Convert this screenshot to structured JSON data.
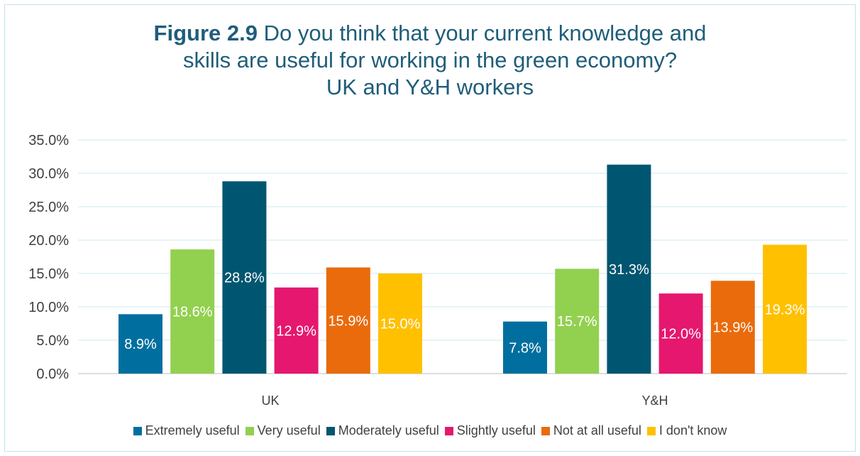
{
  "chart_data": {
    "type": "bar",
    "title": {
      "lead": "Figure 2.9",
      "line1": "Do you think that your current knowledge and",
      "line2": "skills are useful for working in the green economy?",
      "line3": "UK and Y&H workers"
    },
    "categories": [
      "UK",
      "Y&H"
    ],
    "series": [
      {
        "name": "Extremely useful",
        "color": "#006f9f",
        "values": [
          8.9,
          7.8
        ],
        "labels": [
          "8.9%",
          "7.8%"
        ]
      },
      {
        "name": "Very useful",
        "color": "#92d050",
        "values": [
          18.6,
          15.7
        ],
        "labels": [
          "18.6%",
          "15.7%"
        ]
      },
      {
        "name": "Moderately useful",
        "color": "#005670",
        "values": [
          28.8,
          31.3
        ],
        "labels": [
          "28.8%",
          "31.3%"
        ]
      },
      {
        "name": "Slightly useful",
        "color": "#e6176e",
        "values": [
          12.9,
          12.0
        ],
        "labels": [
          "12.9%",
          "12.0%"
        ]
      },
      {
        "name": "Not at all useful",
        "color": "#e96b0c",
        "values": [
          15.9,
          13.9
        ],
        "labels": [
          "15.9%",
          "13.9%"
        ]
      },
      {
        "name": "I don't know",
        "color": "#ffc000",
        "values": [
          15.0,
          19.3
        ],
        "labels": [
          "15.0%",
          "19.3%"
        ]
      }
    ],
    "y_ticks": [
      "0.0%",
      "5.0%",
      "10.0%",
      "15.0%",
      "20.0%",
      "25.0%",
      "30.0%",
      "35.0%"
    ],
    "ylim": [
      0,
      35
    ],
    "grid": true,
    "legend_position": "bottom"
  }
}
